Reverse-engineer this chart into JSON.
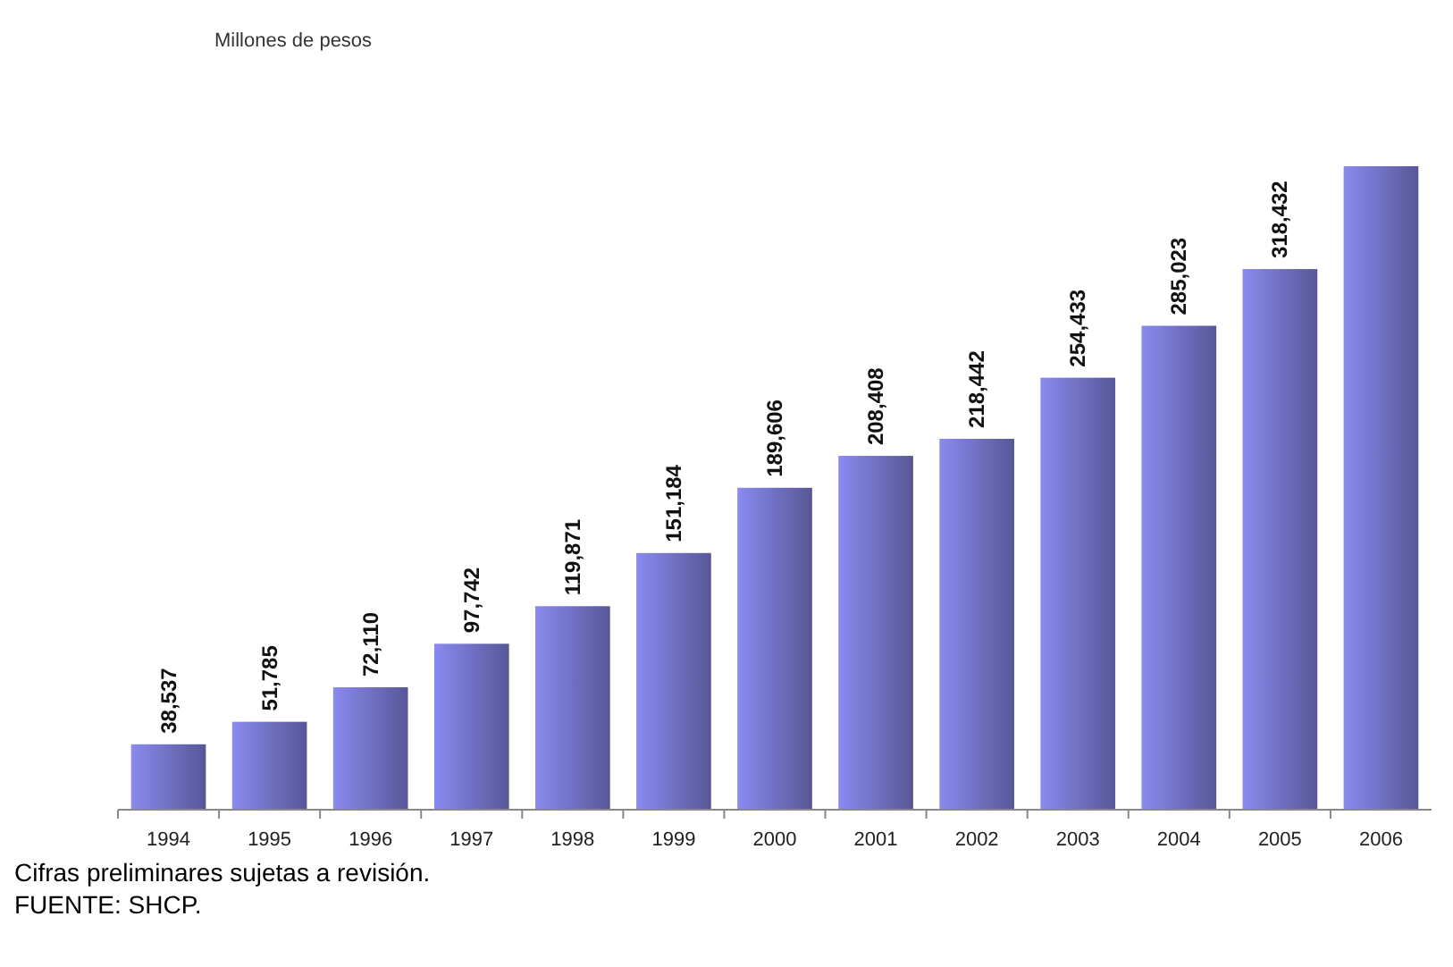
{
  "chart_data": {
    "type": "bar",
    "subtitle": "Millones de pesos",
    "categories": [
      "1994",
      "1995",
      "1996",
      "1997",
      "1998",
      "1999",
      "2000",
      "2001",
      "2002",
      "2003",
      "2004",
      "2005",
      "2006"
    ],
    "values": [
      38537,
      51785,
      72110,
      97742,
      119871,
      151184,
      189606,
      208408,
      218442,
      254433,
      285023,
      318432,
      379000
    ],
    "value_labels": [
      "38,537",
      "51,785",
      "72,110",
      "97,742",
      "119,871",
      "151,184",
      "189,606",
      "208,408",
      "218,442",
      "254,433",
      "285,023",
      "318,432",
      null
    ],
    "color": "#8a8af0",
    "annotations": [
      "Cifras preliminares sujetas a revisión.",
      "FUENTE: SHCP."
    ]
  }
}
